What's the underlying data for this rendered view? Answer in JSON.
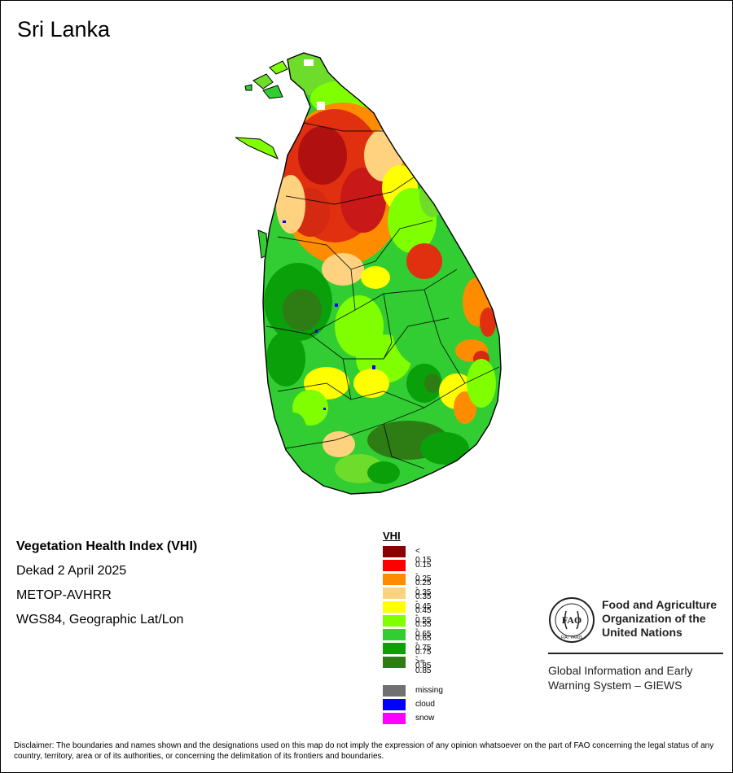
{
  "map": {
    "country": "Sri Lanka"
  },
  "info": {
    "product": "Vegetation Health Index (VHI)",
    "period": "Dekad 2 April 2025",
    "sensor": "METOP-AVHRR",
    "projection": "WGS84, Geographic Lat/Lon"
  },
  "legend": {
    "title": "VHI",
    "classes": [
      {
        "label": "< 0.15",
        "color": "#8b0000"
      },
      {
        "label": "0.15 - 0.25",
        "color": "#ff0000"
      },
      {
        "label": "0.25 - 0.35",
        "color": "#ff8c00"
      },
      {
        "label": "0.35 - 0.45",
        "color": "#ffd27f"
      },
      {
        "label": "0.45 - 0.55",
        "color": "#ffff00"
      },
      {
        "label": "0.55 - 0.65",
        "color": "#7fff00"
      },
      {
        "label": "0.65 - 0.75",
        "color": "#32cd32"
      },
      {
        "label": "0.75 - 0.85",
        "color": "#0aa00a"
      },
      {
        "label": ">= 0.85",
        "color": "#2e7d14"
      }
    ],
    "special": [
      {
        "label": "missing",
        "color": "#707070"
      },
      {
        "label": "cloud",
        "color": "#0000ff"
      },
      {
        "label": "snow",
        "color": "#ff00ff"
      }
    ]
  },
  "org": {
    "name": "Food and Agriculture Organization of the United Nations",
    "system": "Global Information and Early Warning System – GIEWS",
    "logo_text": "FAO",
    "logo_motto": "FIAT PANIS"
  },
  "disclaimer": "Disclaimer: The boundaries and names shown and the designations used on this map do not imply the expression of any opinion whatsoever on the part of FAO concerning the legal status of any country, territory, area or of its authorities, or concerning the delimitation of its frontiers and boundaries."
}
